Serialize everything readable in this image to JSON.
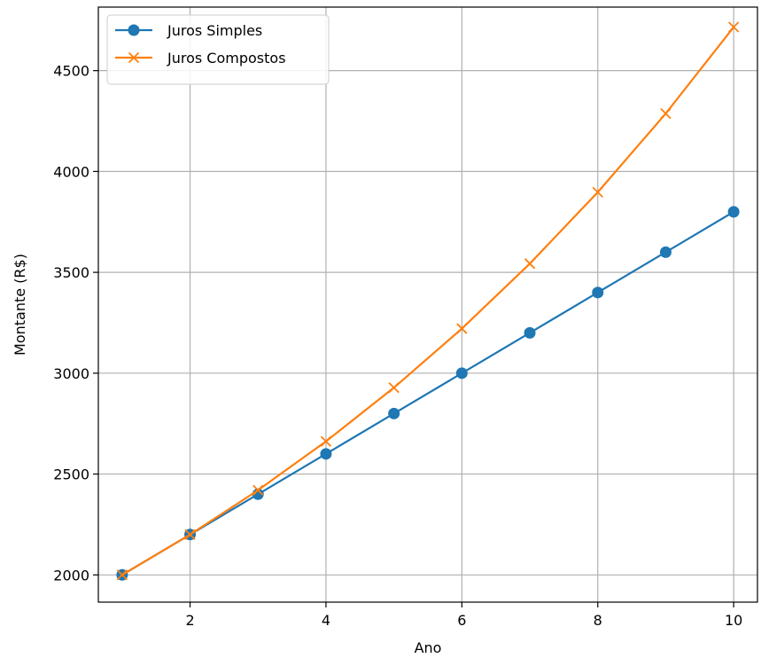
{
  "chart_data": {
    "type": "line",
    "title": "",
    "xlabel": "Ano",
    "ylabel": "Montante (R$)",
    "x": [
      1,
      2,
      3,
      4,
      5,
      6,
      7,
      8,
      9,
      10
    ],
    "xlim": [
      0.65,
      10.35
    ],
    "ylim": [
      1865,
      4815
    ],
    "xticks": [
      2,
      4,
      6,
      8,
      10
    ],
    "yticks": [
      2000,
      2500,
      3000,
      3500,
      4000,
      4500
    ],
    "grid": true,
    "legend_position": "top-left",
    "series": [
      {
        "name": "Juros Simples",
        "marker": "circle",
        "color": "#1f77b4",
        "values": [
          2000,
          2200,
          2400,
          2600,
          2800,
          3000,
          3200,
          3400,
          3600,
          3800
        ]
      },
      {
        "name": "Juros Compostos",
        "marker": "x",
        "color": "#ff7f0e",
        "values": [
          2000,
          2200,
          2420,
          2662,
          2928.2,
          3221,
          3543.1,
          3897.4,
          4287.2,
          4715.9
        ]
      }
    ]
  }
}
